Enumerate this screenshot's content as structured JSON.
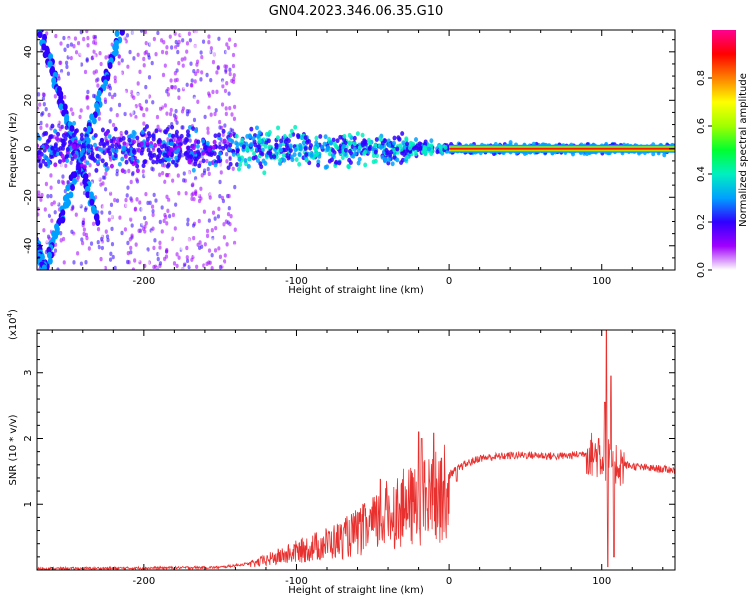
{
  "title": "GN04.2023.346.06.35.G10",
  "chart_data": [
    {
      "type": "heatmap",
      "xlabel": "Height of straight line (km)",
      "ylabel": "Frequency (Hz)",
      "xlim": [
        -270,
        148
      ],
      "ylim": [
        -50,
        49
      ],
      "xticks": [
        -200,
        -100,
        0,
        100
      ],
      "yticks": [
        -40,
        -20,
        0,
        20,
        40
      ],
      "xtick_labels": [
        "-200",
        "-100",
        "0",
        "100"
      ],
      "ytick_labels": [
        "-40",
        "-20",
        "0",
        "20",
        "40"
      ],
      "colorbar": {
        "label": "Normalized spectral amplitude",
        "range": [
          0,
          1
        ],
        "ticks": [
          0.0,
          0.2,
          0.4,
          0.6,
          0.8
        ],
        "tick_labels": [
          "0.0",
          "0.2",
          "0.4",
          "0.6",
          "0.8"
        ],
        "colors": [
          "#ffffff",
          "#a000ff",
          "#3000ff",
          "#00a0ff",
          "#00f0c0",
          "#00ff30",
          "#a0ff00",
          "#ffff00",
          "#ff8000",
          "#ff0000",
          "#ff0090"
        ]
      },
      "features": {
        "carrier_line_freq_hz": 0,
        "strong_line_from_km": 0,
        "diagonal_streaks": [
          {
            "x_start_km": -268,
            "y_start_hz": 49,
            "x_end_km": -230,
            "y_end_hz": -30
          },
          {
            "x_start_km": -215,
            "y_start_hz": 49,
            "x_end_km": -265,
            "y_end_hz": -50
          },
          {
            "x_start_km": -275,
            "y_start_hz": -30,
            "x_end_km": -265,
            "y_end_hz": -50
          }
        ],
        "noise_region_km": [
          -270,
          -140
        ]
      }
    },
    {
      "type": "line",
      "xlabel": "Height of straight line (km)",
      "ylabel": "SNR (10 * v/v)",
      "y_scale_label": "(x10",
      "y_scale_exp": "4",
      "y_scale_close": ")",
      "xlim": [
        -270,
        148
      ],
      "ylim": [
        0,
        3.65
      ],
      "xticks": [
        -200,
        -100,
        0,
        100
      ],
      "yticks": [
        1,
        2,
        3
      ],
      "xtick_labels": [
        "-200",
        "-100",
        "0",
        "100"
      ],
      "ytick_labels": [
        "1",
        "2",
        "3"
      ],
      "color": "#e8302e",
      "envelope": [
        [
          -270,
          0.02
        ],
        [
          -200,
          0.03
        ],
        [
          -150,
          0.04
        ],
        [
          -130,
          0.1
        ],
        [
          -110,
          0.25
        ],
        [
          -90,
          0.4
        ],
        [
          -70,
          0.55
        ],
        [
          -50,
          0.8
        ],
        [
          -40,
          1.0
        ],
        [
          -30,
          1.1
        ],
        [
          -20,
          1.15
        ],
        [
          -10,
          1.3
        ],
        [
          0,
          1.45
        ],
        [
          10,
          1.6
        ],
        [
          20,
          1.7
        ],
        [
          30,
          1.72
        ],
        [
          40,
          1.74
        ],
        [
          50,
          1.75
        ],
        [
          60,
          1.74
        ],
        [
          70,
          1.73
        ],
        [
          80,
          1.74
        ],
        [
          90,
          1.78
        ],
        [
          100,
          1.72
        ],
        [
          110,
          1.62
        ],
        [
          120,
          1.58
        ],
        [
          130,
          1.55
        ],
        [
          148,
          1.52
        ]
      ],
      "spikes": [
        {
          "x_km": -45,
          "y": 1.38
        },
        {
          "x_km": -20,
          "y": 2.1
        },
        {
          "x_km": -18,
          "y": 2.0
        },
        {
          "x_km": -15,
          "y": 1.25
        },
        {
          "x_km": -10,
          "y": 2.08
        },
        {
          "x_km": -5,
          "y": 1.7
        },
        {
          "x_km": 5,
          "y": 1.35
        },
        {
          "x_km": 98,
          "y": 2.0
        },
        {
          "x_km": 102,
          "y": 2.55
        },
        {
          "x_km": 103,
          "y": 3.65
        },
        {
          "x_km": 104,
          "y": 0.05
        },
        {
          "x_km": 106,
          "y": 2.95
        },
        {
          "x_km": 108,
          "y": 0.2
        }
      ]
    }
  ]
}
